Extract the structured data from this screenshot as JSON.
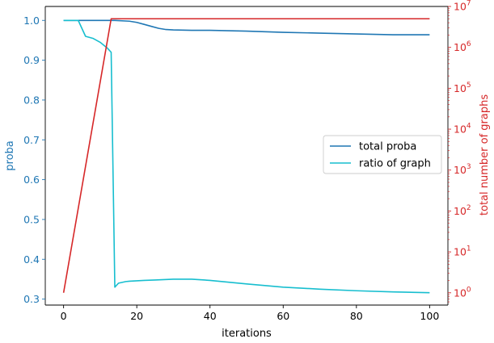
{
  "chart_data": {
    "type": "line",
    "xlabel": "iterations",
    "ylabel_left": "proba",
    "ylabel_right": "total number of graphs",
    "xlim": [
      -5,
      105
    ],
    "ylim_left": [
      0.285,
      1.035
    ],
    "ylim_right_log10": [
      -0.3,
      7.0
    ],
    "right_scale": "log",
    "grid": false,
    "legend_placement": "center-right",
    "x_ticks": [
      "0",
      "20",
      "40",
      "60",
      "80",
      "100"
    ],
    "y_left_ticks": [
      "0.3",
      "0.4",
      "0.5",
      "0.6",
      "0.7",
      "0.8",
      "0.9",
      "1.0"
    ],
    "y_right_ticks": [
      {
        "base": "10",
        "exp": "0"
      },
      {
        "base": "10",
        "exp": "1"
      },
      {
        "base": "10",
        "exp": "2"
      },
      {
        "base": "10",
        "exp": "3"
      },
      {
        "base": "10",
        "exp": "4"
      },
      {
        "base": "10",
        "exp": "5"
      },
      {
        "base": "10",
        "exp": "6"
      },
      {
        "base": "10",
        "exp": "7"
      }
    ],
    "colors": {
      "left_axis": "#1f77b4",
      "right_axis": "#d62728"
    },
    "series": [
      {
        "name": "total proba",
        "axis": "left",
        "color": "#1f77b4",
        "x": [
          0,
          14,
          18,
          20,
          22,
          24,
          26,
          28,
          30,
          35,
          40,
          50,
          60,
          70,
          80,
          90,
          100
        ],
        "y": [
          1.0,
          1.0,
          0.998,
          0.995,
          0.99,
          0.985,
          0.98,
          0.977,
          0.976,
          0.975,
          0.975,
          0.973,
          0.97,
          0.968,
          0.966,
          0.964,
          0.964
        ]
      },
      {
        "name": "ratio of graph",
        "axis": "left",
        "color": "#17becf",
        "x": [
          0,
          4,
          6,
          8,
          10,
          12,
          13,
          14,
          15,
          16,
          17,
          18,
          20,
          22,
          25,
          30,
          35,
          40,
          50,
          60,
          70,
          80,
          90,
          100
        ],
        "y": [
          1.0,
          1.0,
          0.96,
          0.955,
          0.945,
          0.93,
          0.92,
          0.33,
          0.34,
          0.342,
          0.344,
          0.345,
          0.346,
          0.347,
          0.348,
          0.35,
          0.35,
          0.347,
          0.338,
          0.33,
          0.325,
          0.321,
          0.318,
          0.316
        ]
      },
      {
        "name": "",
        "axis": "right",
        "color": "#d62728",
        "x": [
          0,
          13,
          14,
          100
        ],
        "y": [
          1,
          5000000,
          5000000,
          5000000
        ]
      }
    ]
  }
}
